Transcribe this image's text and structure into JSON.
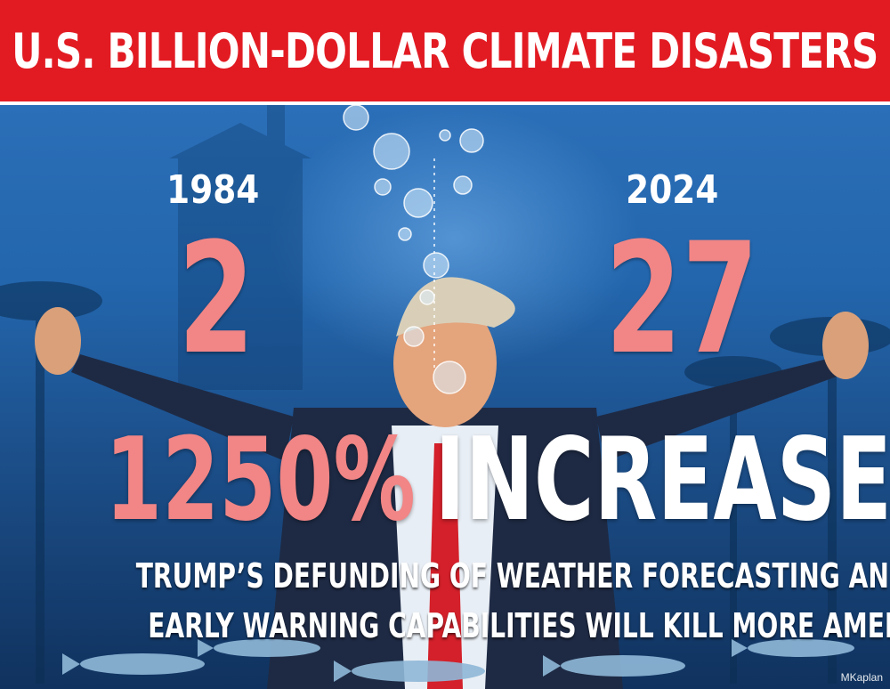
{
  "banner": {
    "title": "U.S. BILLION-DOLLAR CLIMATE DISASTERS",
    "background": "#e21b23"
  },
  "comparison": {
    "left": {
      "year": "1984",
      "count": "2"
    },
    "right": {
      "year": "2024",
      "count": "27"
    },
    "number_color": "#f28585"
  },
  "increase": {
    "percent": "1250%",
    "word": "INCREASE"
  },
  "subtitle": {
    "line1": "TRUMP’S DEFUNDING OF WEATHER FORECASTING AND",
    "line2": "EARLY WARNING CAPABILITIES WILL KILL MORE AMERICANS"
  },
  "credit": "MKaplan",
  "scene": {
    "description_icons": [
      "bubbles",
      "palm-trees",
      "fish",
      "underwater-figure"
    ]
  }
}
